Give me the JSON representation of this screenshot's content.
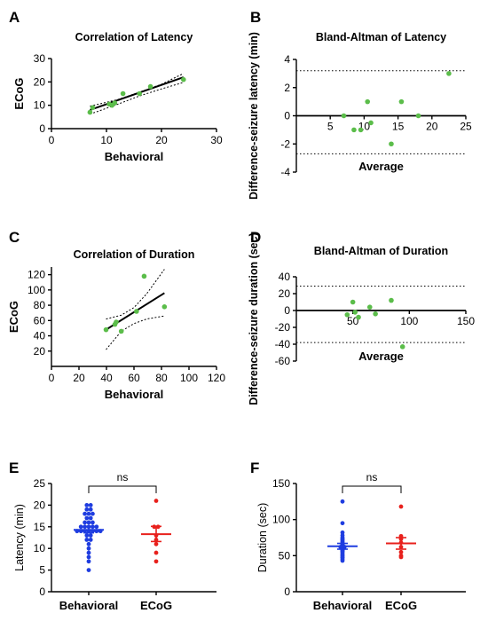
{
  "colors": {
    "green": "#5bbd4a",
    "blue": "#1f3de0",
    "red": "#e8201c",
    "black": "#000000"
  },
  "chart_data": [
    {
      "panel": "A",
      "type": "scatter",
      "title": "Correlation of Latency",
      "xlabel": "Behavioral",
      "ylabel": "ECoG",
      "xlim": [
        0,
        30
      ],
      "ylim": [
        0,
        30
      ],
      "xticks": [
        "0",
        "10",
        "20",
        "30"
      ],
      "yticks": [
        "0",
        "10",
        "20",
        "30"
      ],
      "points": [
        [
          7,
          7
        ],
        [
          7.5,
          9
        ],
        [
          10.5,
          10.5
        ],
        [
          11,
          10
        ],
        [
          11.5,
          11
        ],
        [
          13,
          15
        ],
        [
          16,
          15
        ],
        [
          18,
          18
        ],
        [
          24,
          21
        ]
      ],
      "fit": [
        [
          7,
          8
        ],
        [
          24,
          22
        ]
      ],
      "ci_upper": [
        [
          7,
          9.6
        ],
        [
          12,
          12.4
        ],
        [
          16,
          15.6
        ],
        [
          20,
          19.0
        ],
        [
          24,
          23.6
        ]
      ],
      "ci_lower": [
        [
          7,
          6.2
        ],
        [
          12,
          10.4
        ],
        [
          16,
          14.0
        ],
        [
          20,
          17.0
        ],
        [
          24,
          19.8
        ]
      ]
    },
    {
      "panel": "B",
      "type": "scatter",
      "title": "Bland-Altman of Latency",
      "xlabel": "Average",
      "ylabel": "Difference-seizure latency (min)",
      "xlim": [
        0,
        25
      ],
      "ylim": [
        -4,
        4
      ],
      "xticks": [
        "5",
        "10",
        "15",
        "20",
        "25"
      ],
      "yticks": [
        "-4",
        "-2",
        "0",
        "2",
        "4"
      ],
      "points": [
        [
          7,
          0
        ],
        [
          8.5,
          -1
        ],
        [
          9.5,
          -1
        ],
        [
          10.5,
          1
        ],
        [
          11,
          -0.5
        ],
        [
          14,
          -2
        ],
        [
          15.5,
          1
        ],
        [
          18,
          0
        ],
        [
          22.5,
          3
        ]
      ],
      "limits": [
        3.2,
        -2.7
      ]
    },
    {
      "panel": "C",
      "type": "scatter",
      "title": "Correlation of Duration",
      "xlabel": "Behavioral",
      "ylabel": "ECoG",
      "xlim": [
        0,
        130
      ],
      "ylim": [
        0,
        130
      ],
      "xticks": [
        "0",
        "20",
        "40",
        "60",
        "80",
        "100",
        "120"
      ],
      "yticks": [
        "20",
        "40",
        "60",
        "80",
        "100",
        "120"
      ],
      "points": [
        [
          43,
          48
        ],
        [
          50,
          55
        ],
        [
          51,
          58
        ],
        [
          55,
          46
        ],
        [
          67,
          72
        ],
        [
          73,
          118
        ],
        [
          89,
          78
        ]
      ],
      "fit": [
        [
          43,
          48
        ],
        [
          89,
          96
        ]
      ],
      "ci_upper": [
        [
          43,
          62
        ],
        [
          55,
          67
        ],
        [
          65,
          77
        ],
        [
          75,
          95
        ],
        [
          89,
          127
        ]
      ],
      "ci_lower": [
        [
          43,
          22
        ],
        [
          55,
          46
        ],
        [
          65,
          56
        ],
        [
          75,
          62
        ],
        [
          89,
          66
        ]
      ]
    },
    {
      "panel": "D",
      "type": "scatter",
      "title": "Bland-Altman of Duration",
      "xlabel": "Average",
      "ylabel": "Difference-seizure duration (sec)",
      "xlim": [
        0,
        150
      ],
      "ylim": [
        -60,
        40
      ],
      "xticks": [
        "50",
        "100",
        "150"
      ],
      "yticks": [
        "-60",
        "-40",
        "-20",
        "0",
        "20",
        "40"
      ],
      "points": [
        [
          45,
          -5
        ],
        [
          50,
          10
        ],
        [
          52,
          -2
        ],
        [
          55,
          -8
        ],
        [
          65,
          4
        ],
        [
          70,
          -4
        ],
        [
          84,
          12
        ],
        [
          94,
          -43
        ]
      ],
      "limits": [
        29,
        -38
      ]
    },
    {
      "panel": "E",
      "type": "scatter",
      "ylabel": "Latency (min)",
      "categories": [
        "Behavioral",
        "ECoG"
      ],
      "ylim": [
        0,
        25
      ],
      "yticks": [
        "0",
        "5",
        "10",
        "15",
        "20",
        "25"
      ],
      "significance": "ns",
      "series": [
        {
          "color": "#1f3de0",
          "values": [
            20,
            20,
            19,
            19,
            18,
            18,
            18,
            17,
            17,
            16,
            16,
            16,
            15,
            15,
            15,
            15,
            15,
            14,
            14,
            14,
            14,
            14,
            14,
            14,
            13,
            13,
            12,
            12,
            11,
            10,
            9,
            8,
            7,
            5
          ],
          "mean": 14.3,
          "sem_low": 13.6,
          "sem_high": 15.1
        },
        {
          "color": "#e8201c",
          "values": [
            21,
            15,
            15,
            13,
            12,
            11,
            9,
            7
          ],
          "mean": 13.3,
          "sem_low": 11.6,
          "sem_high": 15.1
        }
      ]
    },
    {
      "panel": "F",
      "type": "scatter",
      "ylabel": "Duration (sec)",
      "categories": [
        "Behavioral",
        "ECoG"
      ],
      "ylim": [
        0,
        150
      ],
      "yticks": [
        "0",
        "50",
        "100",
        "150"
      ],
      "significance": "ns",
      "series": [
        {
          "color": "#1f3de0",
          "values": [
            125,
            95,
            82,
            78,
            75,
            73,
            72,
            70,
            68,
            67,
            66,
            65,
            64,
            63,
            62,
            62,
            61,
            60,
            59,
            58,
            57,
            56,
            55,
            53,
            51,
            50,
            48,
            47,
            45,
            43
          ],
          "mean": 63,
          "sem_low": 59,
          "sem_high": 67
        },
        {
          "color": "#e8201c",
          "values": [
            118,
            77,
            73,
            68,
            62,
            55,
            50,
            48
          ],
          "mean": 67,
          "sem_low": 59,
          "sem_high": 75
        }
      ]
    }
  ]
}
